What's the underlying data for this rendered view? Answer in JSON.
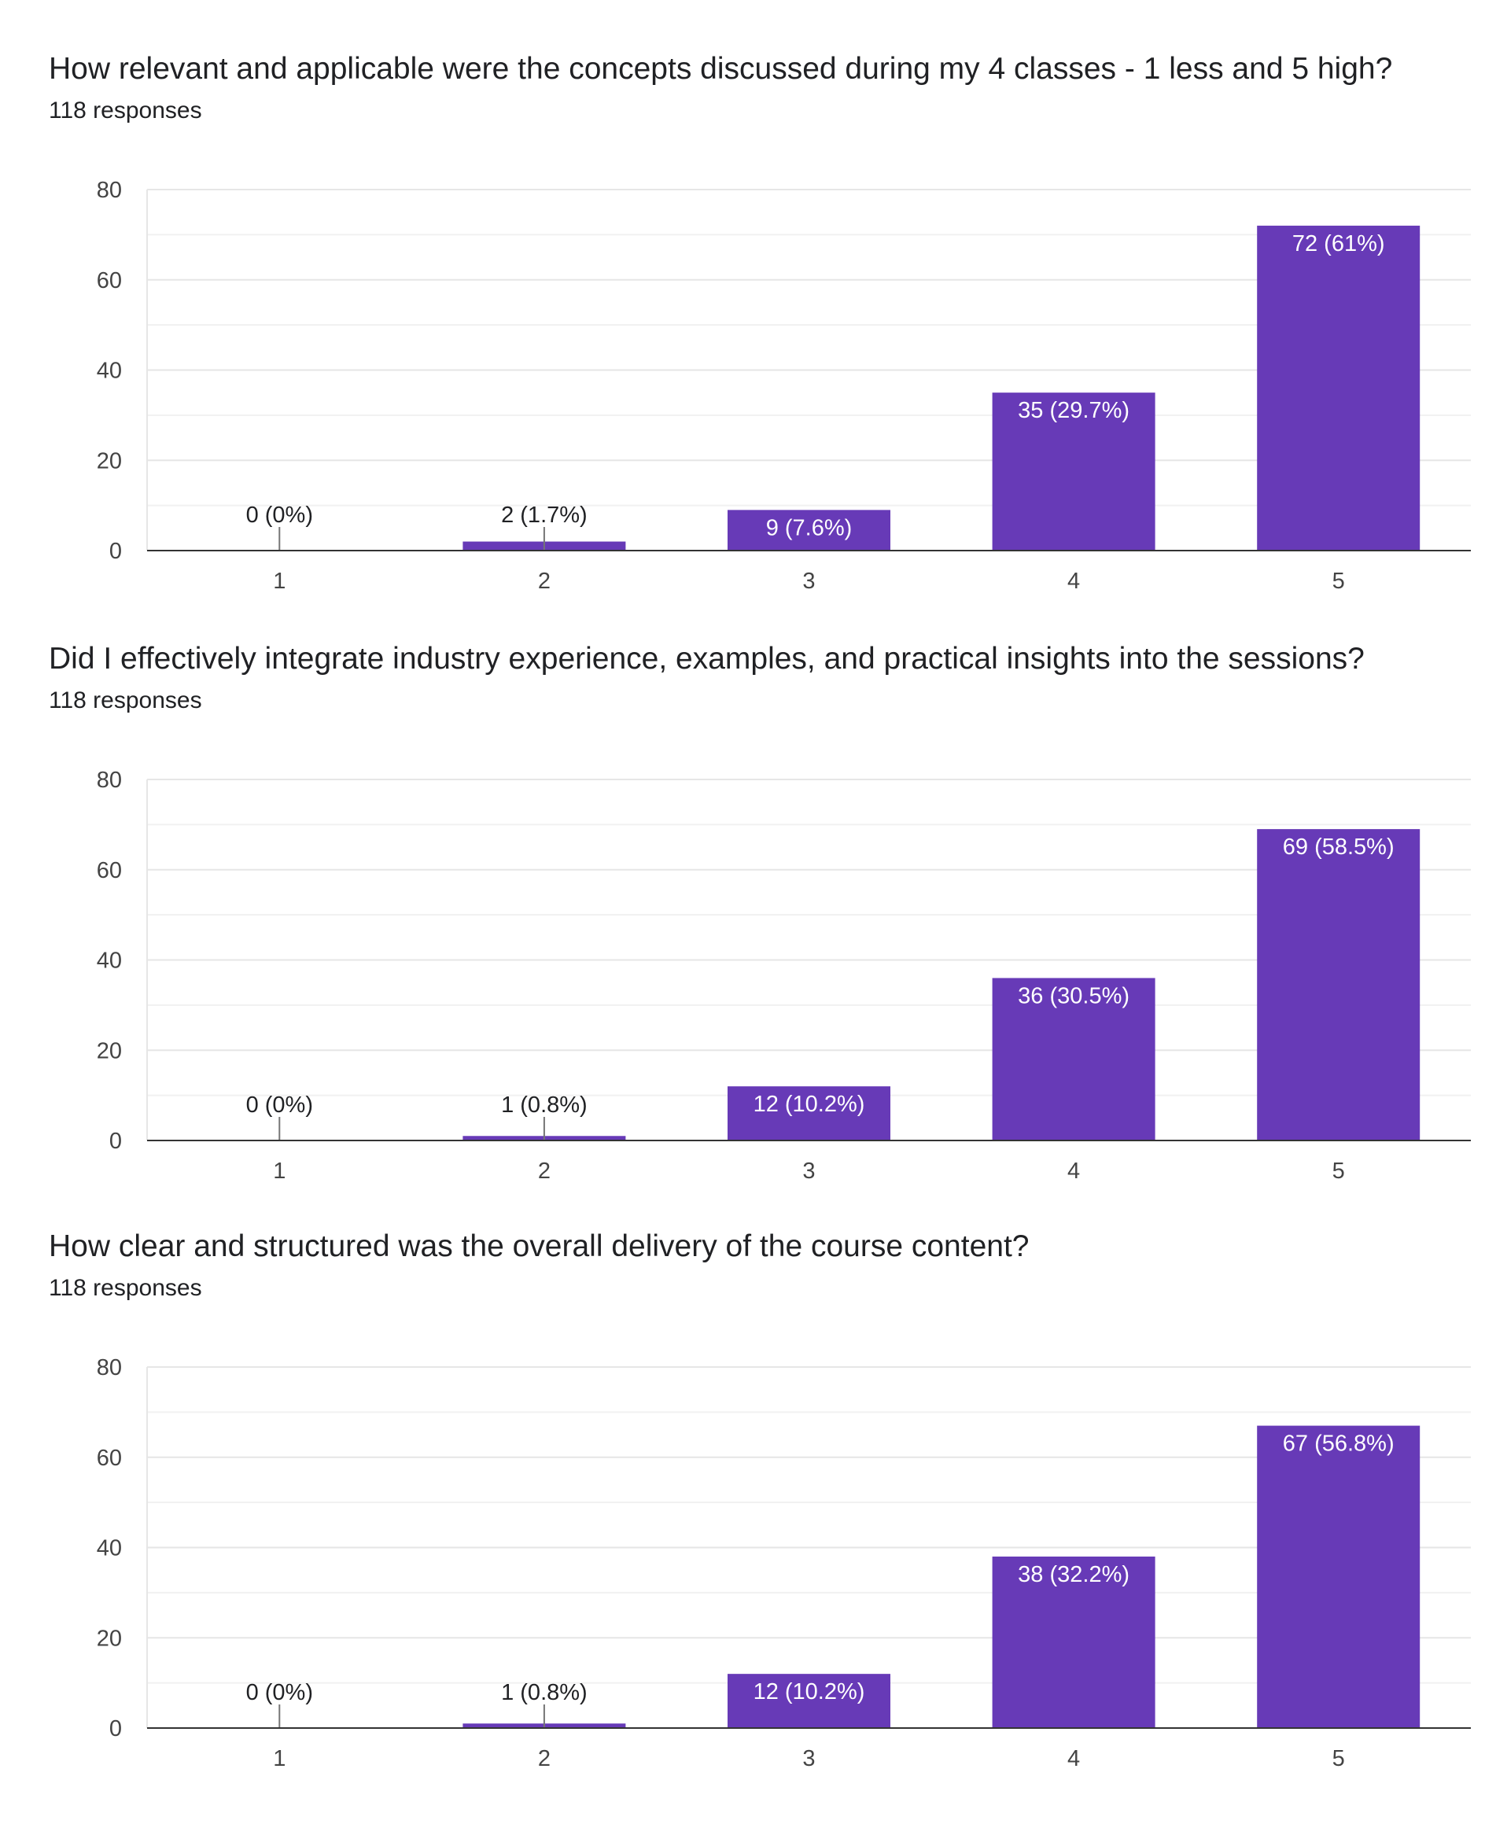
{
  "colors": {
    "bar": "#673ab7",
    "grid": "#e6e6e6",
    "axis": "#333333",
    "label_inside": "#ffffff",
    "label_outside": "#202124"
  },
  "chart_data": [
    {
      "type": "bar",
      "title": "How relevant and applicable were the concepts discussed during my 4 classes - 1 less and 5 high?",
      "subtitle": "118 responses",
      "categories": [
        "1",
        "2",
        "3",
        "4",
        "5"
      ],
      "values": [
        0,
        2,
        9,
        35,
        72
      ],
      "labels": [
        "0 (0%)",
        "2 (1.7%)",
        "9 (7.6%)",
        "35 (29.7%)",
        "72 (61%)"
      ],
      "y_ticks": [
        "0",
        "20",
        "40",
        "60",
        "80"
      ],
      "ylim": [
        0,
        80
      ]
    },
    {
      "type": "bar",
      "title": "Did I effectively integrate industry experience,  examples, and practical insights into the sessions?",
      "subtitle": "118 responses",
      "categories": [
        "1",
        "2",
        "3",
        "4",
        "5"
      ],
      "values": [
        0,
        1,
        12,
        36,
        69
      ],
      "labels": [
        "0 (0%)",
        "1 (0.8%)",
        "12 (10.2%)",
        "36 (30.5%)",
        "69 (58.5%)"
      ],
      "y_ticks": [
        "0",
        "20",
        "40",
        "60",
        "80"
      ],
      "ylim": [
        0,
        80
      ]
    },
    {
      "type": "bar",
      "title": "How clear and structured was the overall delivery of the course content?",
      "subtitle": "118 responses",
      "categories": [
        "1",
        "2",
        "3",
        "4",
        "5"
      ],
      "values": [
        0,
        1,
        12,
        38,
        67
      ],
      "labels": [
        "0 (0%)",
        "1 (0.8%)",
        "12 (10.2%)",
        "38 (32.2%)",
        "67 (56.8%)"
      ],
      "y_ticks": [
        "0",
        "20",
        "40",
        "60",
        "80"
      ],
      "ylim": [
        0,
        80
      ]
    }
  ]
}
